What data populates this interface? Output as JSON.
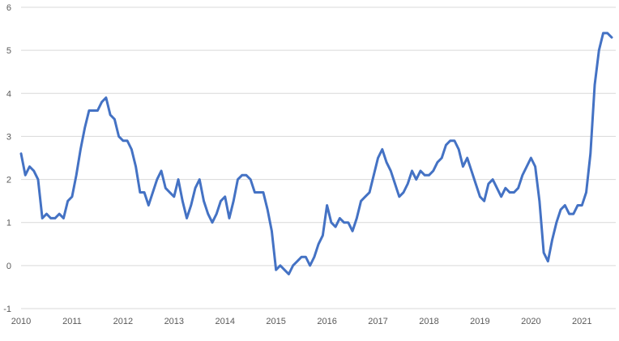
{
  "chart_data": {
    "type": "line",
    "title": "",
    "xlabel": "",
    "ylabel": "",
    "ylim": [
      -1,
      6
    ],
    "yticks": [
      -1,
      0,
      1,
      2,
      3,
      4,
      5,
      6
    ],
    "xticks": [
      "2010",
      "2011",
      "2012",
      "2013",
      "2014",
      "2015",
      "2016",
      "2017",
      "2018",
      "2019",
      "2020",
      "2021"
    ],
    "grid": "horizontal",
    "legend": "none",
    "series_color": "#4472C4",
    "series": [
      {
        "x": [
          "2010-01",
          "2010-02",
          "2010-03",
          "2010-04",
          "2010-05",
          "2010-06",
          "2010-07",
          "2010-08",
          "2010-09",
          "2010-10",
          "2010-11",
          "2010-12",
          "2011-01",
          "2011-02",
          "2011-03",
          "2011-04",
          "2011-05",
          "2011-06",
          "2011-07",
          "2011-08",
          "2011-09",
          "2011-10",
          "2011-11",
          "2011-12",
          "2012-01",
          "2012-02",
          "2012-03",
          "2012-04",
          "2012-05",
          "2012-06",
          "2012-07",
          "2012-08",
          "2012-09",
          "2012-10",
          "2012-11",
          "2012-12",
          "2013-01",
          "2013-02",
          "2013-03",
          "2013-04",
          "2013-05",
          "2013-06",
          "2013-07",
          "2013-08",
          "2013-09",
          "2013-10",
          "2013-11",
          "2013-12",
          "2014-01",
          "2014-02",
          "2014-03",
          "2014-04",
          "2014-05",
          "2014-06",
          "2014-07",
          "2014-08",
          "2014-09",
          "2014-10",
          "2014-11",
          "2014-12",
          "2015-01",
          "2015-02",
          "2015-03",
          "2015-04",
          "2015-05",
          "2015-06",
          "2015-07",
          "2015-08",
          "2015-09",
          "2015-10",
          "2015-11",
          "2015-12",
          "2016-01",
          "2016-02",
          "2016-03",
          "2016-04",
          "2016-05",
          "2016-06",
          "2016-07",
          "2016-08",
          "2016-09",
          "2016-10",
          "2016-11",
          "2016-12",
          "2017-01",
          "2017-02",
          "2017-03",
          "2017-04",
          "2017-05",
          "2017-06",
          "2017-07",
          "2017-08",
          "2017-09",
          "2017-10",
          "2017-11",
          "2017-12",
          "2018-01",
          "2018-02",
          "2018-03",
          "2018-04",
          "2018-05",
          "2018-06",
          "2018-07",
          "2018-08",
          "2018-09",
          "2018-10",
          "2018-11",
          "2018-12",
          "2019-01",
          "2019-02",
          "2019-03",
          "2019-04",
          "2019-05",
          "2019-06",
          "2019-07",
          "2019-08",
          "2019-09",
          "2019-10",
          "2019-11",
          "2019-12",
          "2020-01",
          "2020-02",
          "2020-03",
          "2020-04",
          "2020-05",
          "2020-06",
          "2020-07",
          "2020-08",
          "2020-09",
          "2020-10",
          "2020-11",
          "2020-12",
          "2021-01",
          "2021-02",
          "2021-03",
          "2021-04",
          "2021-05",
          "2021-06",
          "2021-07",
          "2021-08"
        ],
        "values": [
          2.6,
          2.1,
          2.3,
          2.2,
          2.0,
          1.1,
          1.2,
          1.1,
          1.1,
          1.2,
          1.1,
          1.5,
          1.6,
          2.1,
          2.7,
          3.2,
          3.6,
          3.6,
          3.6,
          3.8,
          3.9,
          3.5,
          3.4,
          3.0,
          2.9,
          2.9,
          2.7,
          2.3,
          1.7,
          1.7,
          1.4,
          1.7,
          2.0,
          2.2,
          1.8,
          1.7,
          1.6,
          2.0,
          1.5,
          1.1,
          1.4,
          1.8,
          2.0,
          1.5,
          1.2,
          1.0,
          1.2,
          1.5,
          1.6,
          1.1,
          1.5,
          2.0,
          2.1,
          2.1,
          2.0,
          1.7,
          1.7,
          1.7,
          1.3,
          0.8,
          -0.1,
          0.0,
          -0.1,
          -0.2,
          0.0,
          0.1,
          0.2,
          0.2,
          0.0,
          0.2,
          0.5,
          0.7,
          1.4,
          1.0,
          0.9,
          1.1,
          1.0,
          1.0,
          0.8,
          1.1,
          1.5,
          1.6,
          1.7,
          2.1,
          2.5,
          2.7,
          2.4,
          2.2,
          1.9,
          1.6,
          1.7,
          1.9,
          2.2,
          2.0,
          2.2,
          2.1,
          2.1,
          2.2,
          2.4,
          2.5,
          2.8,
          2.9,
          2.9,
          2.7,
          2.3,
          2.5,
          2.2,
          1.9,
          1.6,
          1.5,
          1.9,
          2.0,
          1.8,
          1.6,
          1.8,
          1.7,
          1.7,
          1.8,
          2.1,
          2.3,
          2.5,
          2.3,
          1.5,
          0.3,
          0.1,
          0.6,
          1.0,
          1.3,
          1.4,
          1.2,
          1.2,
          1.4,
          1.4,
          1.7,
          2.6,
          4.2,
          5.0,
          5.4,
          5.4,
          5.3
        ]
      }
    ]
  }
}
